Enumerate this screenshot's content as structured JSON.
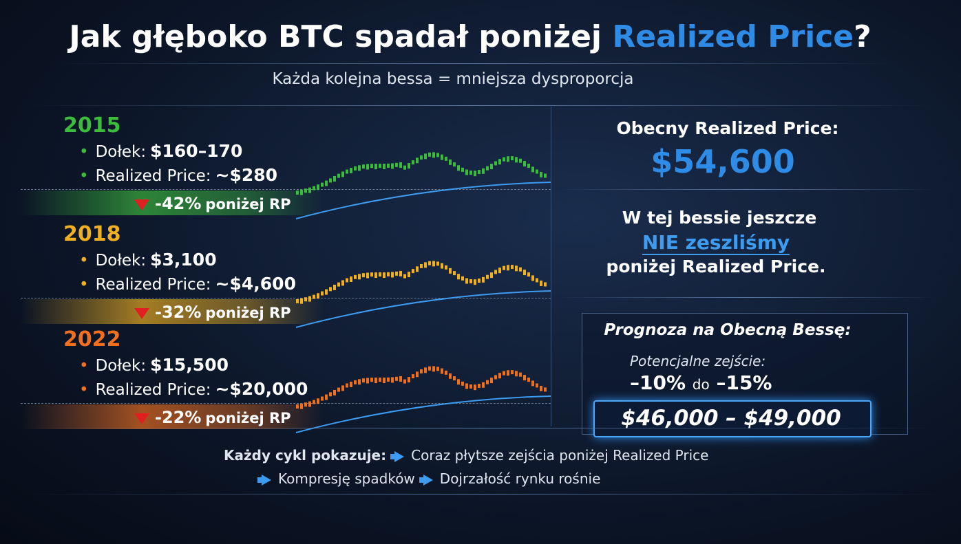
{
  "title": {
    "prefix": "Jak głęboko BTC spadał poniżej",
    "highlight": "Realized Price",
    "suffix": "?"
  },
  "subtitle": "Każda kolejna bessa = mniejsza dysproporcja",
  "cycles": [
    {
      "year": "2015",
      "color": "#3dbb3d",
      "low_label": "Dołek:",
      "low": "$160–170",
      "rp_label": "Realized Price:",
      "rp": "~$280",
      "drop": "-42%",
      "drop_text": "poniżej RP"
    },
    {
      "year": "2018",
      "color": "#f0b020",
      "low_label": "Dołek:",
      "low": "$3,100",
      "rp_label": "Realized Price:",
      "rp": "~$4,600",
      "drop": "-32%",
      "drop_text": "poniżej RP"
    },
    {
      "year": "2022",
      "color": "#f07020",
      "low_label": "Dołek:",
      "low": "$15,500",
      "rp_label": "Realized Price:",
      "rp": "~$20,000",
      "drop": "-22%",
      "drop_text": "poniżej RP"
    }
  ],
  "current": {
    "label": "Obecny Realized Price:",
    "value": "$54,600"
  },
  "status": {
    "line1": "W tej bessie jeszcze",
    "highlight": "NIE zeszliśmy",
    "line3": "poniżej Realized Price."
  },
  "forecast": {
    "title": "Prognoza na Obecną Bessę:",
    "sub": "Potencjalne zejście:",
    "from": "–10%",
    "joiner": "do",
    "to": "–15%",
    "range": "$46,000 – $49,000"
  },
  "footer": {
    "lead": "Każdy cykl pokazuje:",
    "items": [
      "Coraz płytsze zejścia poniżej Realized Price",
      "Kompresję spadków",
      "Dojrzałość rynku rośnie"
    ]
  }
}
